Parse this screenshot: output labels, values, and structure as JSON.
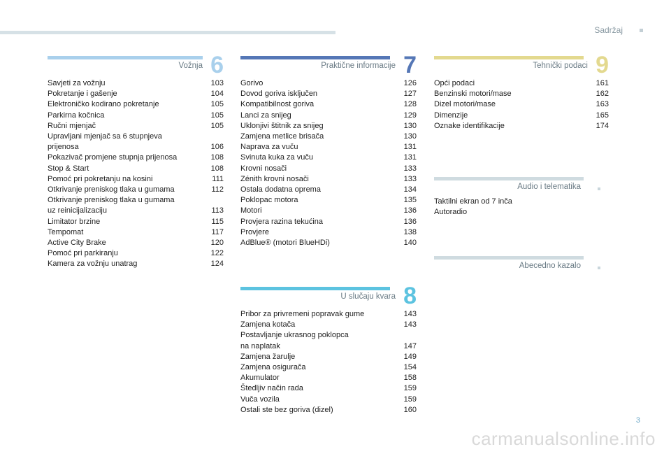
{
  "header": {
    "link": "Sadržaj"
  },
  "sections": {
    "s6": {
      "title": "Vožnja",
      "num": "6",
      "color": "#a9d0ec",
      "items": [
        {
          "label": "Savjeti za vožnju",
          "page": "103"
        },
        {
          "label": "Pokretanje i gašenje",
          "page": "104"
        },
        {
          "label": "Elektroničko kodirano pokretanje",
          "page": "105"
        },
        {
          "label": "Parkirna kočnica",
          "page": "105"
        },
        {
          "label": "Ručni mjenjač",
          "page": "105"
        },
        {
          "label": "Upravljani mjenjač sa 6 stupnjeva\nprijenosa",
          "page": "106"
        },
        {
          "label": "Pokazivač promjene stupnja prijenosa",
          "page": "108"
        },
        {
          "label": "Stop & Start",
          "page": "108"
        },
        {
          "label": "Pomoć pri pokretanju na kosini",
          "page": "111"
        },
        {
          "label": "Otkrivanje preniskog tlaka u gumama",
          "page": "112"
        },
        {
          "label": "Otkrivanje preniskog tlaka u gumama\nuz reinicijalizaciju",
          "page": "113"
        },
        {
          "label": "Limitator brzine",
          "page": "115"
        },
        {
          "label": "Tempomat",
          "page": "117"
        },
        {
          "label": "Active City Brake",
          "page": "120"
        },
        {
          "label": "Pomoć pri parkiranju",
          "page": "122"
        },
        {
          "label": "Kamera za vožnju unatrag",
          "page": "124"
        }
      ]
    },
    "s7": {
      "title": "Praktične informacije",
      "num": "7",
      "color": "#5577b6",
      "items": [
        {
          "label": "Gorivo",
          "page": "126"
        },
        {
          "label": "Dovod goriva isključen",
          "page": "127"
        },
        {
          "label": "Kompatibilnost goriva",
          "page": "128"
        },
        {
          "label": "Lanci za snijeg",
          "page": "129"
        },
        {
          "label": "Uklonjivi štitnik za snijeg",
          "page": "130"
        },
        {
          "label": "Zamjena metlice brisača",
          "page": "130"
        },
        {
          "label": "Naprava za vuču",
          "page": "131"
        },
        {
          "label": "Svinuta kuka za vuču",
          "page": "131"
        },
        {
          "label": "Krovni nosači",
          "page": "133"
        },
        {
          "label": "Zénith krovni nosači",
          "page": "133"
        },
        {
          "label": "Ostala dodatna oprema",
          "page": "134"
        },
        {
          "label": "Poklopac motora",
          "page": "135"
        },
        {
          "label": "Motori",
          "page": "136"
        },
        {
          "label": "Provjera razina tekućina",
          "page": "136"
        },
        {
          "label": "Provjere",
          "page": "138"
        },
        {
          "label": "AdBlue® (motori BlueHDi)",
          "page": "140"
        }
      ]
    },
    "s8": {
      "title": "U slučaju kvara",
      "num": "8",
      "color": "#5cc3e0",
      "items": [
        {
          "label": "Pribor za privremeni popravak gume",
          "page": "143"
        },
        {
          "label": "Zamjena kotača",
          "page": "143"
        },
        {
          "label": "Postavljanje ukrasnog poklopca\nna naplatak",
          "page": "147"
        },
        {
          "label": "Zamjena žarulje",
          "page": "149"
        },
        {
          "label": "Zamjena osigurača",
          "page": "154"
        },
        {
          "label": "Akumulator",
          "page": "158"
        },
        {
          "label": "Štedljiv način rada",
          "page": "159"
        },
        {
          "label": "Vuča vozila",
          "page": "159"
        },
        {
          "label": "Ostali ste bez goriva (dizel)",
          "page": "160"
        }
      ]
    },
    "s9": {
      "title": "Tehnički podaci",
      "num": "9",
      "color": "#e3d98f",
      "items": [
        {
          "label": "Opći podaci",
          "page": "161"
        },
        {
          "label": "Benzinski motori/mase",
          "page": "162"
        },
        {
          "label": "Dizel motori/mase",
          "page": "163"
        },
        {
          "label": "Dimenzije",
          "page": "165"
        },
        {
          "label": "Oznake identifikacije",
          "page": "174"
        }
      ]
    },
    "audio": {
      "title": "Audio i telematika",
      "color": "#cfdbe0",
      "items": [
        {
          "label": "Taktilni ekran od 7 inča",
          "page": ""
        },
        {
          "label": "Autoradio",
          "page": ""
        }
      ]
    },
    "index": {
      "title": "Abecedno kazalo",
      "color": "#cfdbe0",
      "items": []
    }
  },
  "footer": {
    "page_number": "3",
    "watermark": "carmanualsonline.info"
  }
}
